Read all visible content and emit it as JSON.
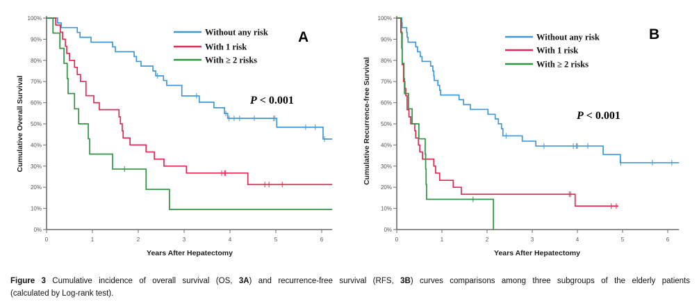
{
  "caption": {
    "label": "Figure 3",
    "part1": " Cumulative incidence of overall survival (OS, ",
    "bold1": "3A",
    "part2": ") and recurrence-free survival (RFS, ",
    "bold2": "3B",
    "part3": ") curves comparisons among three subgroups of the elderly patients",
    "line2": "(calculated by Log-rank test)."
  },
  "colors": {
    "without_any_risk": "#3f98d6",
    "with_1_risk": "#de2a55",
    "with_2_plus_risks": "#2f9440"
  },
  "chart_data": [
    {
      "type": "line",
      "subtype": "kaplan-meier-step",
      "panel_label": "A",
      "title": "",
      "xlabel": "Years After Hepatectomy",
      "ylabel": "Cumulative Overall Survival",
      "xlim": [
        0,
        6.23
      ],
      "ylim": [
        0,
        100
      ],
      "grid": false,
      "xticks": [
        0,
        1,
        2,
        3,
        4,
        5,
        6
      ],
      "xtick_labels": [
        "0",
        "1",
        "2",
        "3",
        "4",
        "5",
        "6"
      ],
      "yticks": [
        0,
        10,
        20,
        30,
        40,
        50,
        60,
        70,
        80,
        90,
        100
      ],
      "ytick_labels": [
        "0%",
        "10%",
        "20%",
        "30%",
        "40%",
        "50%",
        "60%",
        "70%",
        "80%",
        "90%",
        "100%"
      ],
      "annotation": {
        "p_symbol": "P",
        "p_text": " < 0.001"
      },
      "legend": {
        "position": "top-right",
        "entries": [
          "Without any risk",
          "With 1 risk",
          "With ≥ 2 risks"
        ]
      },
      "series": [
        {
          "id": "without-any-risk",
          "name": "Without any risk",
          "color_key": "without_any_risk",
          "steps": [
            [
              0.24,
              97.7
            ],
            [
              0.32,
              95.5
            ],
            [
              0.67,
              93.2
            ],
            [
              0.73,
              90.9
            ],
            [
              0.97,
              88.6
            ],
            [
              1.44,
              86.4
            ],
            [
              1.5,
              84.1
            ],
            [
              1.91,
              81.8
            ],
            [
              1.96,
              79.5
            ],
            [
              2.06,
              77.3
            ],
            [
              2.32,
              75.0
            ],
            [
              2.38,
              72.7
            ],
            [
              2.55,
              70.5
            ],
            [
              2.62,
              68.2
            ],
            [
              2.95,
              63.2
            ],
            [
              3.33,
              60.2
            ],
            [
              3.65,
              57.6
            ],
            [
              3.88,
              54.9
            ],
            [
              3.95,
              52.6
            ],
            [
              5.02,
              48.4
            ],
            [
              6.03,
              42.8
            ]
          ],
          "censored": [
            [
              2.42,
              72.7
            ],
            [
              3.27,
              63.2
            ],
            [
              3.91,
              54.9
            ],
            [
              3.98,
              52.6
            ],
            [
              4.09,
              52.6
            ],
            [
              4.21,
              52.6
            ],
            [
              4.53,
              52.6
            ],
            [
              4.95,
              52.6
            ],
            [
              4.98,
              52.6
            ],
            [
              5.65,
              48.4
            ],
            [
              5.86,
              48.4
            ],
            [
              6.06,
              42.8
            ]
          ],
          "end": 6.23
        },
        {
          "id": "with-1-risk",
          "name": "With 1 risk",
          "color_key": "with_1_risk",
          "steps": [
            [
              0.2,
              96.7
            ],
            [
              0.3,
              93.3
            ],
            [
              0.35,
              90.0
            ],
            [
              0.41,
              86.7
            ],
            [
              0.44,
              83.3
            ],
            [
              0.5,
              80.0
            ],
            [
              0.61,
              76.7
            ],
            [
              0.67,
              73.3
            ],
            [
              0.74,
              70.0
            ],
            [
              0.86,
              63.3
            ],
            [
              1.03,
              60.0
            ],
            [
              1.15,
              56.7
            ],
            [
              1.58,
              53.3
            ],
            [
              1.61,
              50.0
            ],
            [
              1.65,
              46.7
            ],
            [
              1.67,
              43.3
            ],
            [
              1.82,
              40.0
            ],
            [
              2.17,
              36.7
            ],
            [
              2.35,
              33.3
            ],
            [
              2.56,
              30.0
            ],
            [
              3.05,
              26.7
            ],
            [
              4.39,
              21.3
            ]
          ],
          "censored": [
            [
              3.82,
              26.7
            ],
            [
              3.88,
              26.7
            ],
            [
              3.9,
              26.7
            ],
            [
              4.76,
              21.3
            ],
            [
              4.85,
              21.3
            ],
            [
              5.14,
              21.3
            ]
          ],
          "end": 6.23
        },
        {
          "id": "with-2-plus-risks",
          "name": "With ≥ 2 risks",
          "color_key": "with_2_plus_risks",
          "steps": [
            [
              0.14,
              92.9
            ],
            [
              0.29,
              85.7
            ],
            [
              0.38,
              78.6
            ],
            [
              0.45,
              71.4
            ],
            [
              0.47,
              64.3
            ],
            [
              0.61,
              57.1
            ],
            [
              0.7,
              50.0
            ],
            [
              0.91,
              42.9
            ],
            [
              0.94,
              35.7
            ],
            [
              1.44,
              28.6
            ],
            [
              2.17,
              19.0
            ],
            [
              2.68,
              9.5
            ]
          ],
          "censored": [
            [
              1.7,
              28.6
            ]
          ],
          "end": 6.23
        }
      ]
    },
    {
      "type": "line",
      "subtype": "kaplan-meier-step",
      "panel_label": "B",
      "title": "",
      "xlabel": "Years After Hepatectomy",
      "ylabel": "Cumulative Recurrence-free Survival",
      "xlim": [
        0,
        6.25
      ],
      "ylim": [
        0,
        100
      ],
      "grid": false,
      "xticks": [
        0,
        1,
        2,
        3,
        4,
        5,
        6
      ],
      "xtick_labels": [
        "0",
        "1",
        "2",
        "3",
        "4",
        "5",
        "6"
      ],
      "yticks": [
        0,
        10,
        20,
        30,
        40,
        50,
        60,
        70,
        80,
        90,
        100
      ],
      "ytick_labels": [
        "0%",
        "10%",
        "20%",
        "30%",
        "40%",
        "50%",
        "60%",
        "70%",
        "80%",
        "90%",
        "100%"
      ],
      "annotation": {
        "p_symbol": "P",
        "p_text": " < 0.001"
      },
      "legend": {
        "position": "top-right",
        "entries": [
          "Without any risk",
          "With 1 risk",
          "With ≥ 2 risks"
        ]
      },
      "series": [
        {
          "id": "without-any-risk",
          "name": "Without any risk",
          "color_key": "without_any_risk",
          "steps": [
            [
              0.11,
              97.7
            ],
            [
              0.12,
              95.5
            ],
            [
              0.22,
              93.2
            ],
            [
              0.23,
              90.9
            ],
            [
              0.25,
              88.6
            ],
            [
              0.42,
              86.4
            ],
            [
              0.46,
              84.1
            ],
            [
              0.52,
              81.8
            ],
            [
              0.56,
              79.5
            ],
            [
              0.75,
              77.3
            ],
            [
              0.8,
              75.0
            ],
            [
              0.82,
              72.7
            ],
            [
              0.83,
              70.5
            ],
            [
              0.91,
              68.2
            ],
            [
              0.95,
              65.9
            ],
            [
              0.97,
              63.6
            ],
            [
              1.38,
              61.4
            ],
            [
              1.48,
              59.1
            ],
            [
              1.63,
              56.8
            ],
            [
              2.02,
              54.5
            ],
            [
              2.18,
              52.3
            ],
            [
              2.25,
              50.0
            ],
            [
              2.32,
              47.7
            ],
            [
              2.35,
              44.3
            ],
            [
              2.78,
              41.8
            ],
            [
              3.08,
              39.5
            ],
            [
              4.57,
              35.5
            ],
            [
              4.95,
              31.6
            ]
          ],
          "censored": [
            [
              2.42,
              44.3
            ],
            [
              3.26,
              39.5
            ],
            [
              3.91,
              39.5
            ],
            [
              3.98,
              39.5
            ],
            [
              4.0,
              39.5
            ],
            [
              4.23,
              39.5
            ],
            [
              4.96,
              31.6
            ],
            [
              5.66,
              31.6
            ],
            [
              6.09,
              31.6
            ]
          ],
          "end": 6.25
        },
        {
          "id": "with-1-risk",
          "name": "With 1 risk",
          "color_key": "with_1_risk",
          "steps": [
            [
              0.09,
              93.3
            ],
            [
              0.12,
              78.0
            ],
            [
              0.15,
              70.0
            ],
            [
              0.18,
              66.7
            ],
            [
              0.2,
              63.3
            ],
            [
              0.23,
              56.7
            ],
            [
              0.27,
              53.3
            ],
            [
              0.31,
              50.0
            ],
            [
              0.4,
              46.7
            ],
            [
              0.42,
              43.3
            ],
            [
              0.48,
              40.0
            ],
            [
              0.51,
              36.7
            ],
            [
              0.57,
              33.3
            ],
            [
              0.82,
              30.0
            ],
            [
              0.86,
              26.7
            ],
            [
              0.95,
              23.3
            ],
            [
              1.25,
              20.0
            ],
            [
              1.43,
              16.7
            ],
            [
              3.95,
              11.1
            ]
          ],
          "censored": [
            [
              3.82,
              16.7
            ],
            [
              3.85,
              16.7
            ],
            [
              4.75,
              11.1
            ],
            [
              4.86,
              11.1
            ]
          ],
          "end": 4.91
        },
        {
          "id": "with-2-plus-risks",
          "name": "With ≥ 2 risks",
          "color_key": "with_2_plus_risks",
          "steps": [
            [
              0.1,
              92.9
            ],
            [
              0.11,
              85.7
            ],
            [
              0.12,
              78.6
            ],
            [
              0.16,
              71.4
            ],
            [
              0.17,
              64.3
            ],
            [
              0.26,
              57.1
            ],
            [
              0.34,
              50.0
            ],
            [
              0.49,
              42.9
            ],
            [
              0.63,
              35.7
            ],
            [
              0.64,
              28.6
            ],
            [
              0.65,
              21.4
            ],
            [
              0.66,
              14.3
            ],
            [
              2.14,
              0
            ]
          ],
          "censored": [
            [
              1.69,
              14.3
            ]
          ],
          "end": 2.14
        }
      ]
    }
  ]
}
